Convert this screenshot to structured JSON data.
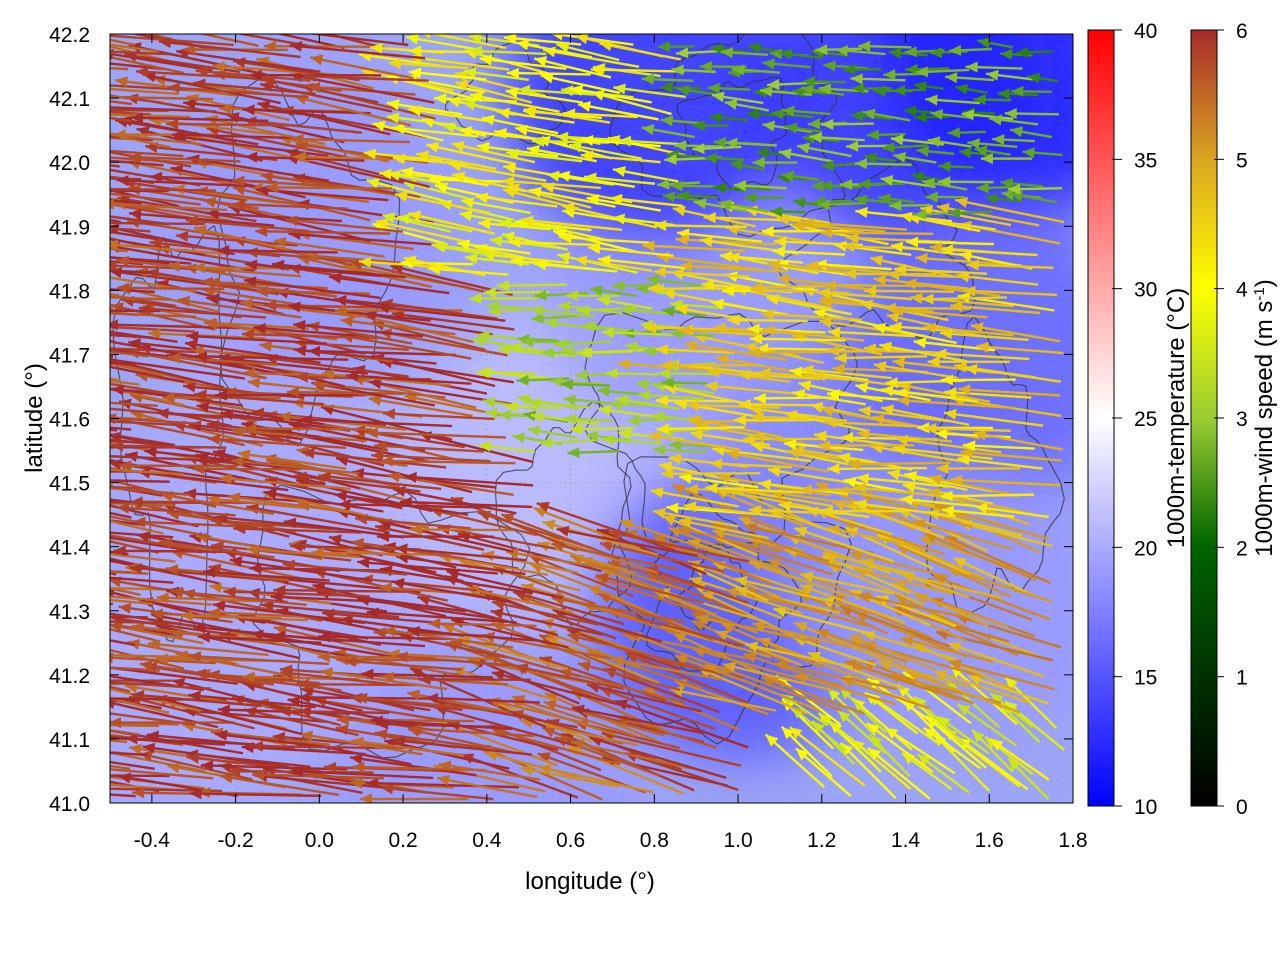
{
  "chart_data": {
    "type": "heatmap",
    "subtype": "wind-vector-field-over-temperature-map-with-terrain-contours",
    "xlabel": "longitude (°)",
    "ylabel": "latitude (°)",
    "xlim": [
      -0.5,
      1.8
    ],
    "ylim": [
      41.0,
      42.2
    ],
    "xticks": [
      "-0.4",
      "-0.2",
      "0.0",
      "0.2",
      "0.4",
      "0.6",
      "0.8",
      "1.0",
      "1.2",
      "1.4",
      "1.6",
      "1.8"
    ],
    "xtick_values": [
      -0.4,
      -0.2,
      0.0,
      0.2,
      0.4,
      0.6,
      0.8,
      1.0,
      1.2,
      1.4,
      1.6,
      1.8
    ],
    "yticks": [
      "41.0",
      "41.1",
      "41.2",
      "41.3",
      "41.4",
      "41.5",
      "41.6",
      "41.7",
      "41.8",
      "41.9",
      "42.0",
      "42.1",
      "42.2"
    ],
    "ytick_values": [
      41.0,
      41.1,
      41.2,
      41.3,
      41.4,
      41.5,
      41.6,
      41.7,
      41.8,
      41.9,
      42.0,
      42.1,
      42.2
    ],
    "grid": true,
    "temperature_colorbar": {
      "label": "1000m-temperature (°C)",
      "range": [
        10,
        40
      ],
      "ticks": [
        "10",
        "15",
        "20",
        "25",
        "30",
        "35",
        "40"
      ],
      "tick_values": [
        10,
        15,
        20,
        25,
        30,
        35,
        40
      ],
      "colors": [
        "#0000ff",
        "#ffffff",
        "#ff0000"
      ]
    },
    "wind_colorbar": {
      "label_main": "1000m-wind speed (m s",
      "label_sup": "-1",
      "label_end": ")",
      "range": [
        0,
        6
      ],
      "ticks": [
        "0",
        "1",
        "2",
        "3",
        "4",
        "5",
        "6"
      ],
      "tick_values": [
        0,
        1,
        2,
        3,
        4,
        5,
        6
      ],
      "colors": [
        "#000000",
        "#006400",
        "#9acd32",
        "#ffff00",
        "#daa520",
        "#a52a2a"
      ]
    },
    "temperature_field": [
      {
        "lon": -0.3,
        "lat": 41.2,
        "t": 20
      },
      {
        "lon": -0.1,
        "lat": 41.5,
        "t": 20
      },
      {
        "lon": 0.2,
        "lat": 41.3,
        "t": 20
      },
      {
        "lon": 0.5,
        "lat": 41.5,
        "t": 21
      },
      {
        "lon": 0.0,
        "lat": 41.9,
        "t": 19
      },
      {
        "lon": 0.7,
        "lat": 41.6,
        "t": 21
      },
      {
        "lon": 0.9,
        "lat": 41.8,
        "t": 19
      },
      {
        "lon": 0.8,
        "lat": 42.1,
        "t": 13
      },
      {
        "lon": 1.4,
        "lat": 42.1,
        "t": 13
      },
      {
        "lon": 1.7,
        "lat": 42.15,
        "t": 12
      },
      {
        "lon": 1.0,
        "lat": 41.3,
        "t": 15
      },
      {
        "lon": 1.3,
        "lat": 41.5,
        "t": 18
      },
      {
        "lon": 1.6,
        "lat": 41.7,
        "t": 16
      },
      {
        "lon": 1.5,
        "lat": 41.3,
        "t": 19
      },
      {
        "lon": 0.4,
        "lat": 41.05,
        "t": 19
      }
    ],
    "wind_regions": [
      {
        "lon": [
          -0.5,
          0.55
        ],
        "lat": [
          41.0,
          42.2
        ],
        "u": -4.8,
        "v": 0.6,
        "speed": 5.8
      },
      {
        "lon": [
          0.55,
          1.05
        ],
        "lat": [
          41.0,
          41.4
        ],
        "u": -4.4,
        "v": 1.3,
        "speed": 5.5
      },
      {
        "lon": [
          0.3,
          0.9
        ],
        "lat": [
          41.8,
          42.2
        ],
        "u": -3.5,
        "v": 0.5,
        "speed": 3.6
      },
      {
        "lon": [
          0.9,
          1.8
        ],
        "lat": [
          41.9,
          42.2
        ],
        "u": -1.5,
        "v": 0.1,
        "speed": 2.0
      },
      {
        "lon": [
          0.5,
          1.0
        ],
        "lat": [
          41.55,
          41.8
        ],
        "u": -1.8,
        "v": 0.1,
        "speed": 2.5
      },
      {
        "lon": [
          1.0,
          1.8
        ],
        "lat": [
          41.4,
          41.9
        ],
        "u": -3.2,
        "v": 0.3,
        "speed": 4.2
      },
      {
        "lon": [
          1.2,
          1.8
        ],
        "lat": [
          41.0,
          41.4
        ],
        "u": -0.6,
        "v": 0.5,
        "speed": 3.4
      },
      {
        "lon": [
          1.05,
          1.8
        ],
        "lat": [
          41.15,
          41.45
        ],
        "u": -3.0,
        "v": 1.0,
        "speed": 4.8
      }
    ],
    "terrain_contours": [
      {
        "lon": 0.95,
        "lat": 41.33,
        "rx": 0.08,
        "ry": 0.06
      },
      {
        "lon": 0.95,
        "lat": 41.33,
        "rx": 0.16,
        "ry": 0.12
      },
      {
        "lon": 0.95,
        "lat": 41.33,
        "rx": 0.26,
        "ry": 0.2
      },
      {
        "lon": 0.95,
        "lat": 41.6,
        "rx": 0.3,
        "ry": 0.18
      },
      {
        "lon": 1.0,
        "lat": 42.05,
        "rx": 0.12,
        "ry": 0.08
      },
      {
        "lon": 1.0,
        "lat": 42.05,
        "rx": 0.25,
        "ry": 0.15
      },
      {
        "lon": 0.45,
        "lat": 42.1,
        "rx": 0.12,
        "ry": 0.07
      },
      {
        "lon": 1.6,
        "lat": 41.5,
        "rx": 0.14,
        "ry": 0.2
      },
      {
        "lon": -0.05,
        "lat": 41.85,
        "rx": 0.2,
        "ry": 0.25
      },
      {
        "lon": 0.15,
        "lat": 41.3,
        "rx": 0.3,
        "ry": 0.2
      },
      {
        "lon": -0.35,
        "lat": 41.6,
        "rx": 0.12,
        "ry": 0.3
      },
      {
        "lon": 0.6,
        "lat": 41.45,
        "rx": 0.15,
        "ry": 0.15
      },
      {
        "lon": 1.35,
        "lat": 41.85,
        "rx": 0.2,
        "ry": 0.12
      }
    ]
  }
}
